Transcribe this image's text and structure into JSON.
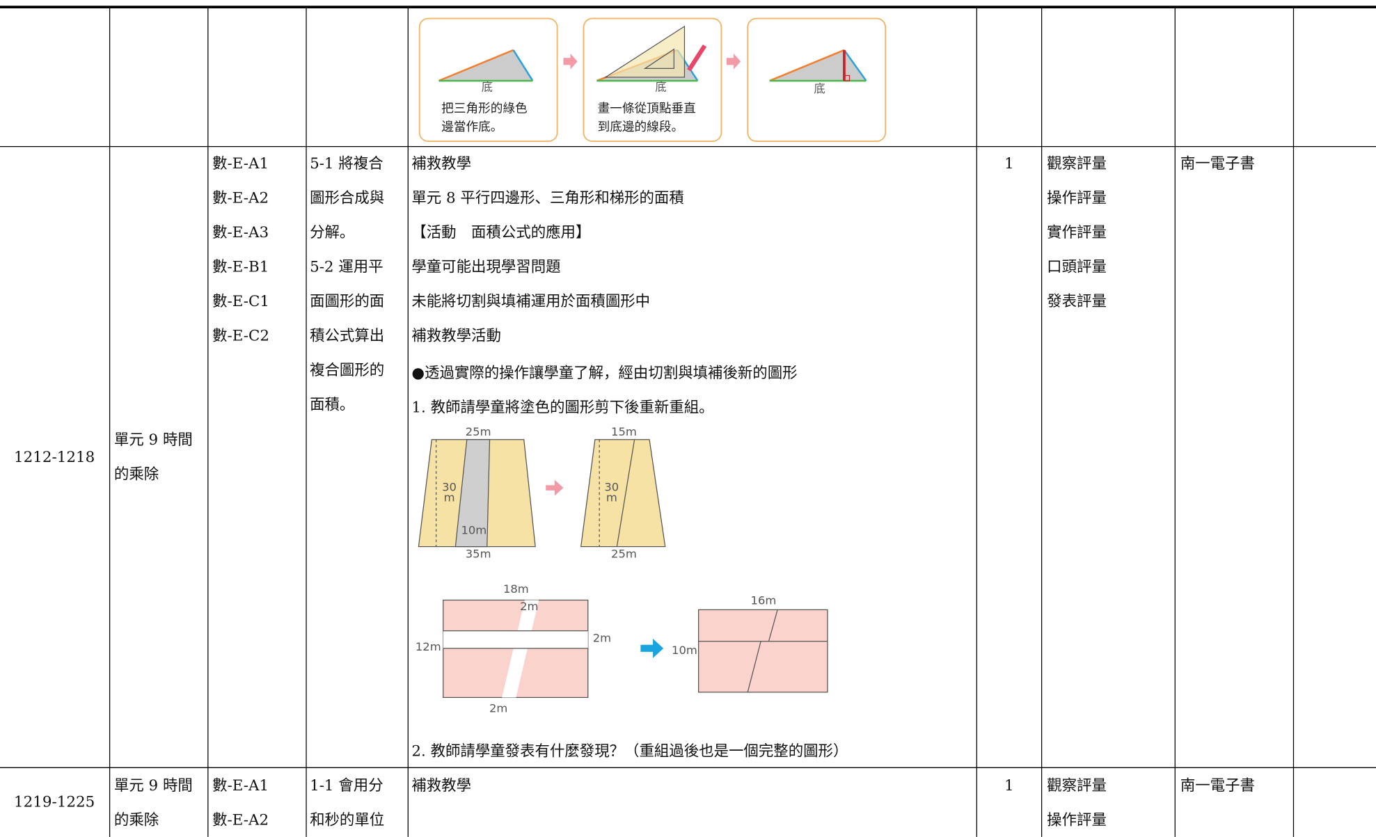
{
  "top_row": {
    "figure": {
      "step1": {
        "label": "底",
        "caption": [
          "把三角形的綠色",
          "邊當作底。"
        ]
      },
      "step2": {
        "label": "底",
        "caption": [
          "畫一條從頂點垂直",
          "到底邊的線段。"
        ]
      },
      "step3": {
        "label": "底"
      }
    }
  },
  "rows": [
    {
      "week": "1212-1218",
      "unit": [
        "單元 9 時間",
        "的乘除"
      ],
      "codes": [
        "數-E-A1",
        "數-E-A2",
        "數-E-A3",
        "數-E-B1",
        "數-E-C1",
        "數-E-C2"
      ],
      "objectives": [
        "5-1 將複合",
        "圖形合成與",
        "分解。",
        "5-2 運用平",
        "面圖形的面",
        "積公式算出",
        "複合圖形的",
        "面積。"
      ],
      "activity": [
        "補救教學",
        "單元 8 平行四邊形、三角形和梯形的面積",
        "【活動　面積公式的應用】",
        "學童可能出現學習問題",
        "未能將切割與填補運用於面積圖形中",
        "補救教學活動",
        "●透過實際的操作讓學童了解，經由切割與填補後新的圖形",
        "1. 教師請學童將塗色的圖形剪下後重新重組。"
      ],
      "figure_trapezoid": {
        "left": [
          "25m",
          "30",
          "m",
          "10m",
          "35m"
        ],
        "right": [
          "15m",
          "30",
          "m",
          "25m"
        ]
      },
      "figure_rectangle": {
        "left": [
          "18m",
          "2m",
          "2m",
          "12m",
          "2m"
        ],
        "right": [
          "16m",
          "10m"
        ]
      },
      "activity_end": "2. 教師請學童發表有什麼發現？（重組過後也是一個完整的圖形）",
      "periods": "1",
      "assessments": [
        "觀察評量",
        "操作評量",
        "實作評量",
        "口頭評量",
        "發表評量"
      ],
      "materials": "南一電子書"
    },
    {
      "week": "1219-1225",
      "unit": [
        "單元 9 時間",
        "的乘除"
      ],
      "codes": [
        "數-E-A1",
        "數-E-A2"
      ],
      "objectives": [
        "1-1 會用分",
        "和秒的單位"
      ],
      "activity": [
        "補救教學"
      ],
      "periods": "1",
      "assessments": [
        "觀察評量",
        "操作評量"
      ],
      "materials": "南一電子書"
    }
  ]
}
